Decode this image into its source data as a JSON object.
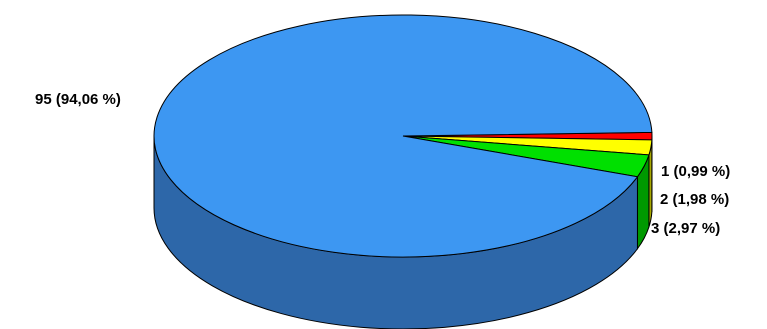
{
  "chart_data": {
    "type": "pie",
    "style": "3d",
    "slices": [
      {
        "value": 95,
        "percent": "94,06 %",
        "label": "95 (94,06 %)",
        "color": "#3d97f2",
        "side_color": "#2d67a9"
      },
      {
        "value": 1,
        "percent": "0,99 %",
        "label": "1 (0,99 %)",
        "color": "#ff0000",
        "side_color": "#b00000"
      },
      {
        "value": 2,
        "percent": "1,98 %",
        "label": "2 (1,98 %)",
        "color": "#ffff00",
        "side_color": "#a8a800"
      },
      {
        "value": 3,
        "percent": "2,97 %",
        "label": "3 (2,97 %)",
        "color": "#00e000",
        "side_color": "#009900"
      }
    ],
    "title": "",
    "legend": "none"
  }
}
